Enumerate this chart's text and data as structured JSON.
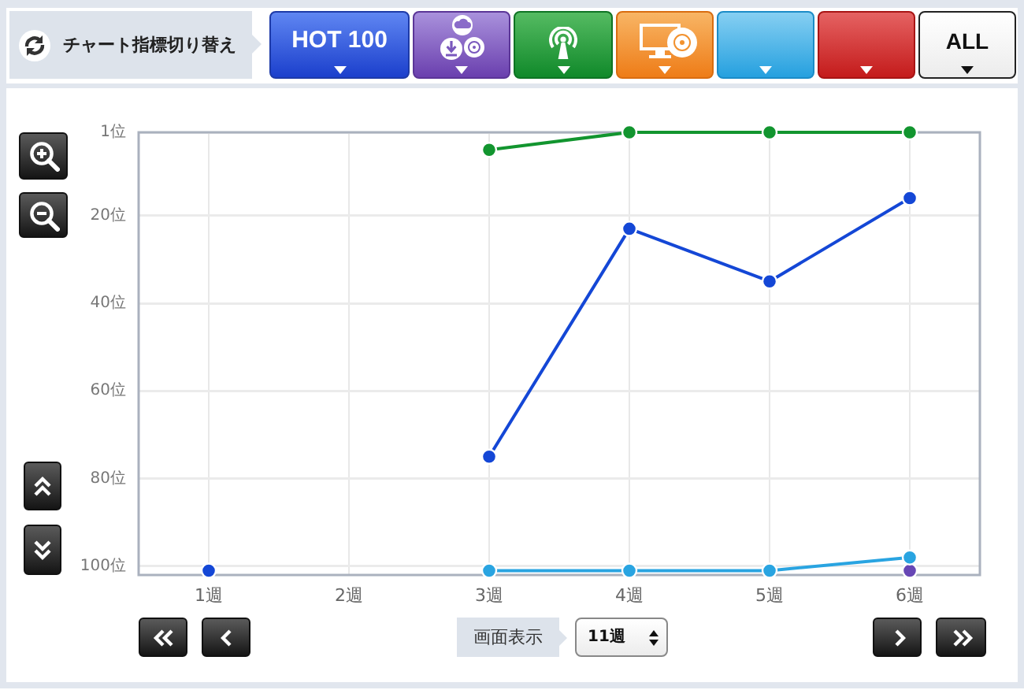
{
  "chart_data": {
    "type": "line",
    "categories": [
      "1週",
      "2週",
      "3週",
      "4週",
      "5週",
      "6週"
    ],
    "series": [
      {
        "color": "#12952f",
        "values": [
          null,
          null,
          5,
          1,
          1,
          1
        ]
      },
      {
        "color": "#1447d6",
        "values": [
          101,
          null,
          75,
          23,
          35,
          16
        ]
      },
      {
        "color": "#29a4e1",
        "values": [
          null,
          null,
          101,
          101,
          101,
          98
        ]
      },
      {
        "color": "#6747b5",
        "values": [
          null,
          null,
          null,
          null,
          null,
          101
        ]
      }
    ],
    "ylim": [
      102,
      1
    ],
    "yticks": [
      {
        "value": 1,
        "label": "1位"
      },
      {
        "value": 20,
        "label": "20位"
      },
      {
        "value": 40,
        "label": "40位"
      },
      {
        "value": 60,
        "label": "60位"
      },
      {
        "value": 80,
        "label": "80位"
      },
      {
        "value": 100,
        "label": "100位"
      }
    ],
    "grid": true,
    "legend": false,
    "marker": "circle",
    "line_style": "solid",
    "annotations": [
      "チャート指標切り替え",
      "HOT 100",
      "ALL",
      "画面表示",
      "11週"
    ]
  }
}
